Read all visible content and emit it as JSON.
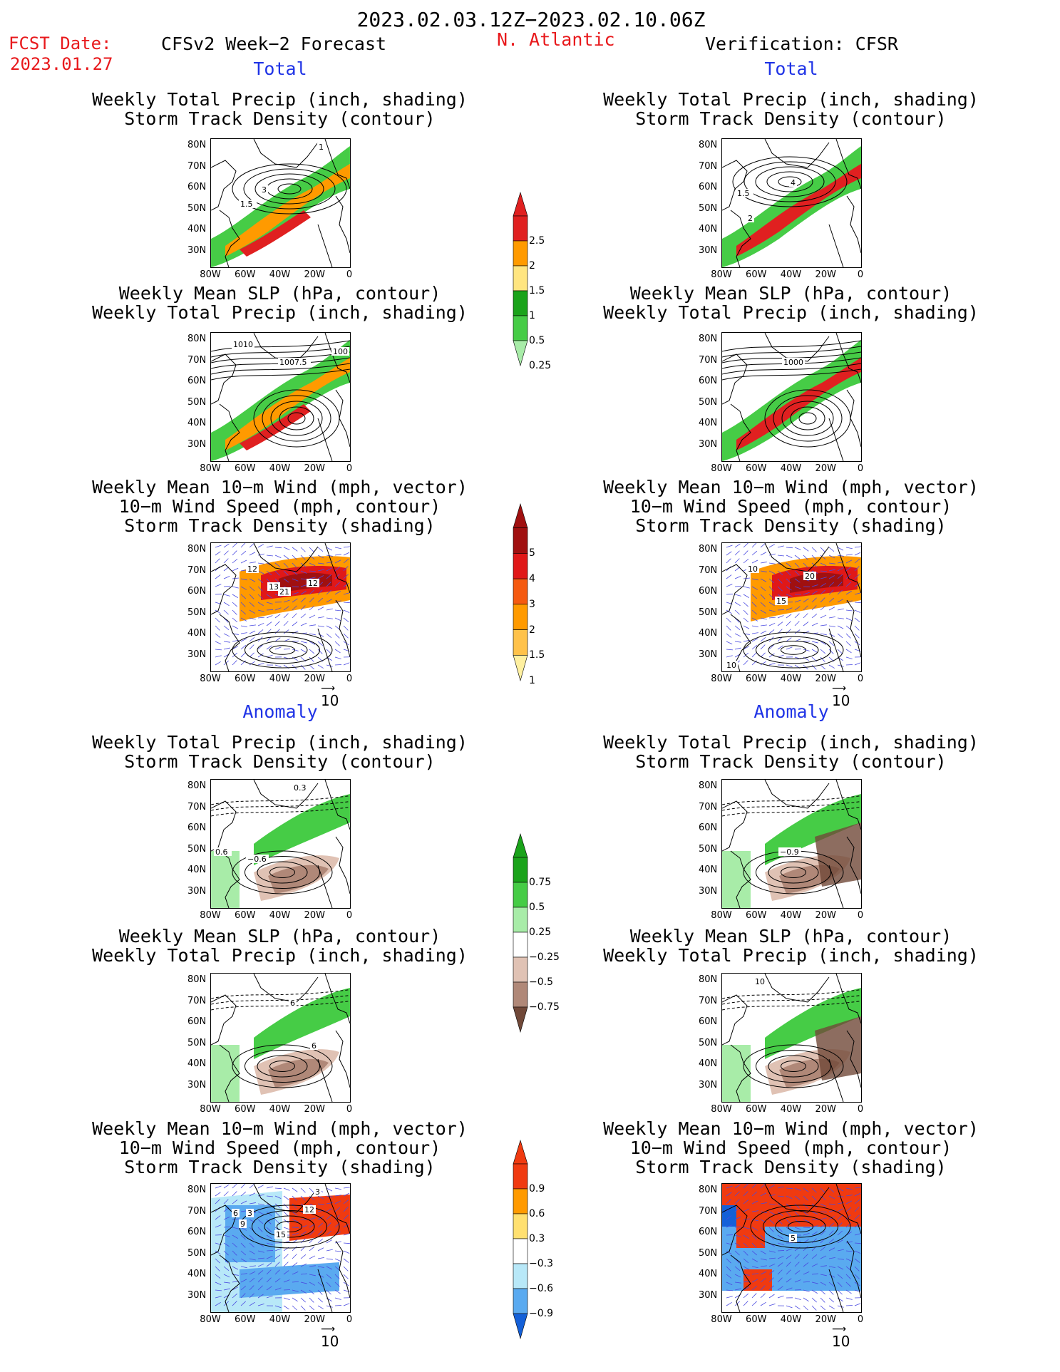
{
  "header": {
    "date_range": "2023.02.03.12Z−2023.02.10.06Z",
    "fcst_label": "FCST Date:",
    "fcst_date": "2023.01.27",
    "model": "CFSv2 Week−2 Forecast",
    "region": "N. Atlantic",
    "verification": "Verification: CFSR"
  },
  "sections": {
    "total": "Total",
    "anomaly": "Anomaly"
  },
  "panel_titles": {
    "precip_storm": [
      "Weekly Total Precip (inch, shading)",
      "Storm Track Density (contour)"
    ],
    "slp_precip": [
      "Weekly Mean SLP (hPa, contour)",
      "Weekly Total Precip (inch, shading)"
    ],
    "wind_storm": [
      "Weekly Mean 10−m Wind (mph, vector)",
      "10−m Wind Speed (mph, contour)",
      "Storm Track Density (shading)"
    ]
  },
  "axes": {
    "lat_ticks": [
      "80N",
      "70N",
      "60N",
      "50N",
      "40N",
      "30N"
    ],
    "lon_ticks": [
      "80W",
      "60W",
      "40W",
      "20W",
      "0"
    ]
  },
  "vector_reference": "10",
  "colorbars": {
    "precip_total": {
      "labels": [
        "2.5",
        "2",
        "1.5",
        "1",
        "0.5",
        "0.25"
      ],
      "colors": [
        "#e02020",
        "#ff9a00",
        "#ffe580",
        "#1aa31a",
        "#46cc46",
        "#a8eca8"
      ]
    },
    "storm_total": {
      "labels": [
        "5",
        "4",
        "3",
        "2",
        "1.5",
        "1"
      ],
      "colors": [
        "#a01010",
        "#e01818",
        "#f55a10",
        "#ff9a00",
        "#ffc24a",
        "#fff0a0"
      ]
    },
    "precip_anom": {
      "labels": [
        "0.75",
        "0.5",
        "0.25",
        "−0.25",
        "−0.5",
        "−0.75"
      ],
      "colors": [
        "#1aa31a",
        "#46cc46",
        "#a8eca8",
        "#ffffff",
        "#e0c2b4",
        "#b08878",
        "#704838"
      ]
    },
    "storm_anom": {
      "labels": [
        "0.9",
        "0.6",
        "0.3",
        "−0.3",
        "−0.6",
        "−0.9"
      ],
      "colors": [
        "#f03a10",
        "#ff9a00",
        "#ffe070",
        "#ffffff",
        "#b8e8f8",
        "#5aaaf0",
        "#1460d8"
      ]
    }
  },
  "panel_labels": {
    "f1": [
      "1",
      "3",
      "1.5"
    ],
    "v1": [
      "4",
      "1.5",
      "2"
    ],
    "f2": [
      "1010",
      "1007.5",
      "100"
    ],
    "v2": [
      "1000"
    ],
    "f3": [
      "12",
      "13",
      "21",
      "12"
    ],
    "v3": [
      "10",
      "20",
      "15",
      "10"
    ],
    "f4": [
      "0.3",
      "0.6",
      "−0.6"
    ],
    "v4": [
      "−0.9"
    ],
    "f5": [
      "6",
      "6"
    ],
    "v5": [
      "10"
    ],
    "f6": [
      "3",
      "6",
      "3",
      "9",
      "12",
      "15"
    ],
    "v6": [
      "5"
    ]
  }
}
